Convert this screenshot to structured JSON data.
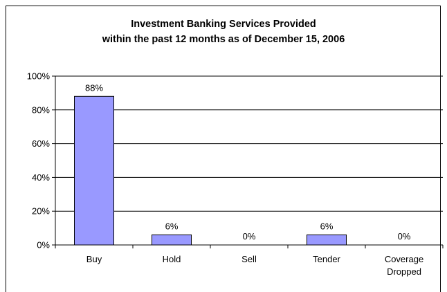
{
  "chart_data": {
    "type": "bar",
    "title_lines": [
      "Investment Banking Services Provided",
      "within the past 12 months as of December 15, 2006"
    ],
    "categories": [
      [
        "Buy"
      ],
      [
        "Hold"
      ],
      [
        "Sell"
      ],
      [
        "Tender"
      ],
      [
        "Coverage",
        "Dropped"
      ]
    ],
    "values": [
      88,
      6,
      0,
      6,
      0
    ],
    "data_labels": [
      "88%",
      "6%",
      "0%",
      "6%",
      "0%"
    ],
    "ylim": [
      0,
      100
    ],
    "yticks": [
      0,
      20,
      40,
      60,
      80,
      100
    ],
    "ytick_labels": [
      "0%",
      "20%",
      "40%",
      "60%",
      "80%",
      "100%"
    ],
    "grid": true,
    "legend": "none",
    "bar_color": "#9999ff"
  }
}
